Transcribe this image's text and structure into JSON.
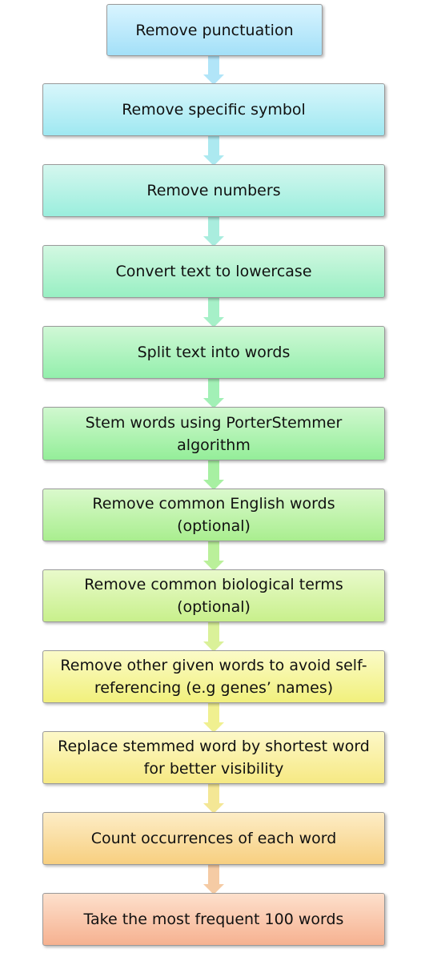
{
  "steps": [
    {
      "label": "Remove punctuation",
      "color_top": "#d9f4ff",
      "color_bottom": "#a3e0f8"
    },
    {
      "label": "Remove specific symbol",
      "color_top": "#d8f6fb",
      "color_bottom": "#9fe8f1"
    },
    {
      "label": "Remove numbers",
      "color_top": "#d5f7ef",
      "color_bottom": "#9aeedd"
    },
    {
      "label": "Convert text to lowercase",
      "color_top": "#d3f8e2",
      "color_bottom": "#98efc3"
    },
    {
      "label": "Split text into words",
      "color_top": "#d0f8d6",
      "color_bottom": "#93efac"
    },
    {
      "label": "Stem words using PorterStemmer algorithm",
      "color_top": "#d0f8cf",
      "color_bottom": "#94ee99"
    },
    {
      "label": "Remove common English words (optional)",
      "color_top": "#daf9cc",
      "color_bottom": "#a9ee8f"
    },
    {
      "label": "Remove common biological terms (optional)",
      "color_top": "#e9facb",
      "color_bottom": "#c8f08c"
    },
    {
      "label": "Remove other given words to avoid self-referencing (e.g genes’ names)",
      "color_top": "#fbfbc8",
      "color_bottom": "#f1f07c"
    },
    {
      "label": "Replace stemmed word by shortest word for better visibility",
      "color_top": "#fdf8c8",
      "color_bottom": "#f6e983"
    },
    {
      "label": "Count occurrences of each word",
      "color_top": "#fdedc6",
      "color_bottom": "#f7cf80"
    },
    {
      "label": "Take the most frequent 100 words",
      "color_top": "#fde0cc",
      "color_bottom": "#f6b190"
    }
  ],
  "arrows": [
    {
      "color": "#a8e2f7"
    },
    {
      "color": "#a3e7ee"
    },
    {
      "color": "#a0ebda"
    },
    {
      "color": "#9ceec2"
    },
    {
      "color": "#98eeae"
    },
    {
      "color": "#9dee98"
    },
    {
      "color": "#b3ee8f"
    },
    {
      "color": "#d6f08e"
    },
    {
      "color": "#eeee84"
    },
    {
      "color": "#f3e48a"
    },
    {
      "color": "#f4c59a"
    }
  ]
}
